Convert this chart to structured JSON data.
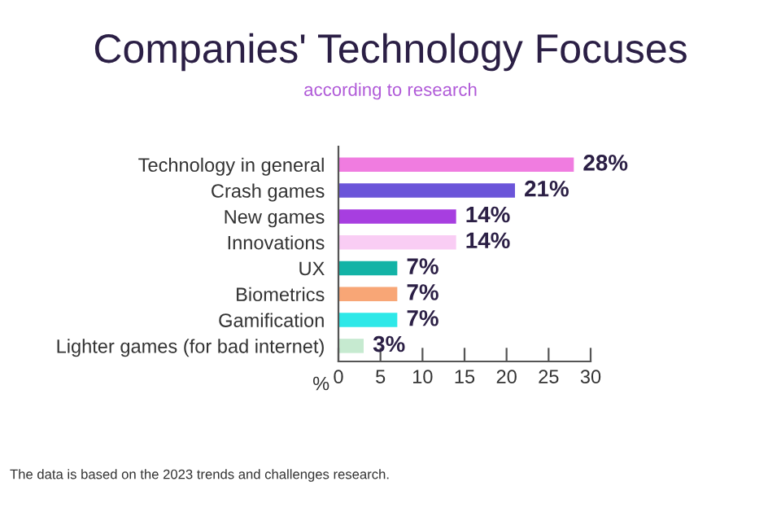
{
  "chart_data": {
    "type": "bar",
    "orientation": "horizontal",
    "title": "Companies' Technology Focuses",
    "subtitle": "according to research",
    "xlabel": "%",
    "categories": [
      "Technology in general",
      "Crash games",
      "New games",
      "Innovations",
      "UX",
      "Biometrics",
      "Gamification",
      "Lighter games (for bad internet)"
    ],
    "values": [
      28,
      21,
      14,
      14,
      7,
      7,
      7,
      3
    ],
    "colors": [
      "#f07ce0",
      "#6b55d9",
      "#a73ee0",
      "#f9cdf4",
      "#13b3a6",
      "#f8a676",
      "#2ee8e8",
      "#c6ead0"
    ],
    "value_labels": [
      "28%",
      "21%",
      "14%",
      "14%",
      "7%",
      "7%",
      "7%",
      "3%"
    ],
    "xlim": [
      0,
      30
    ],
    "xticks": [
      0,
      5,
      10,
      15,
      20,
      25,
      30
    ],
    "grid": false,
    "legend": false,
    "annotations": [
      "The data is based on the 2023 trends and challenges research."
    ]
  }
}
